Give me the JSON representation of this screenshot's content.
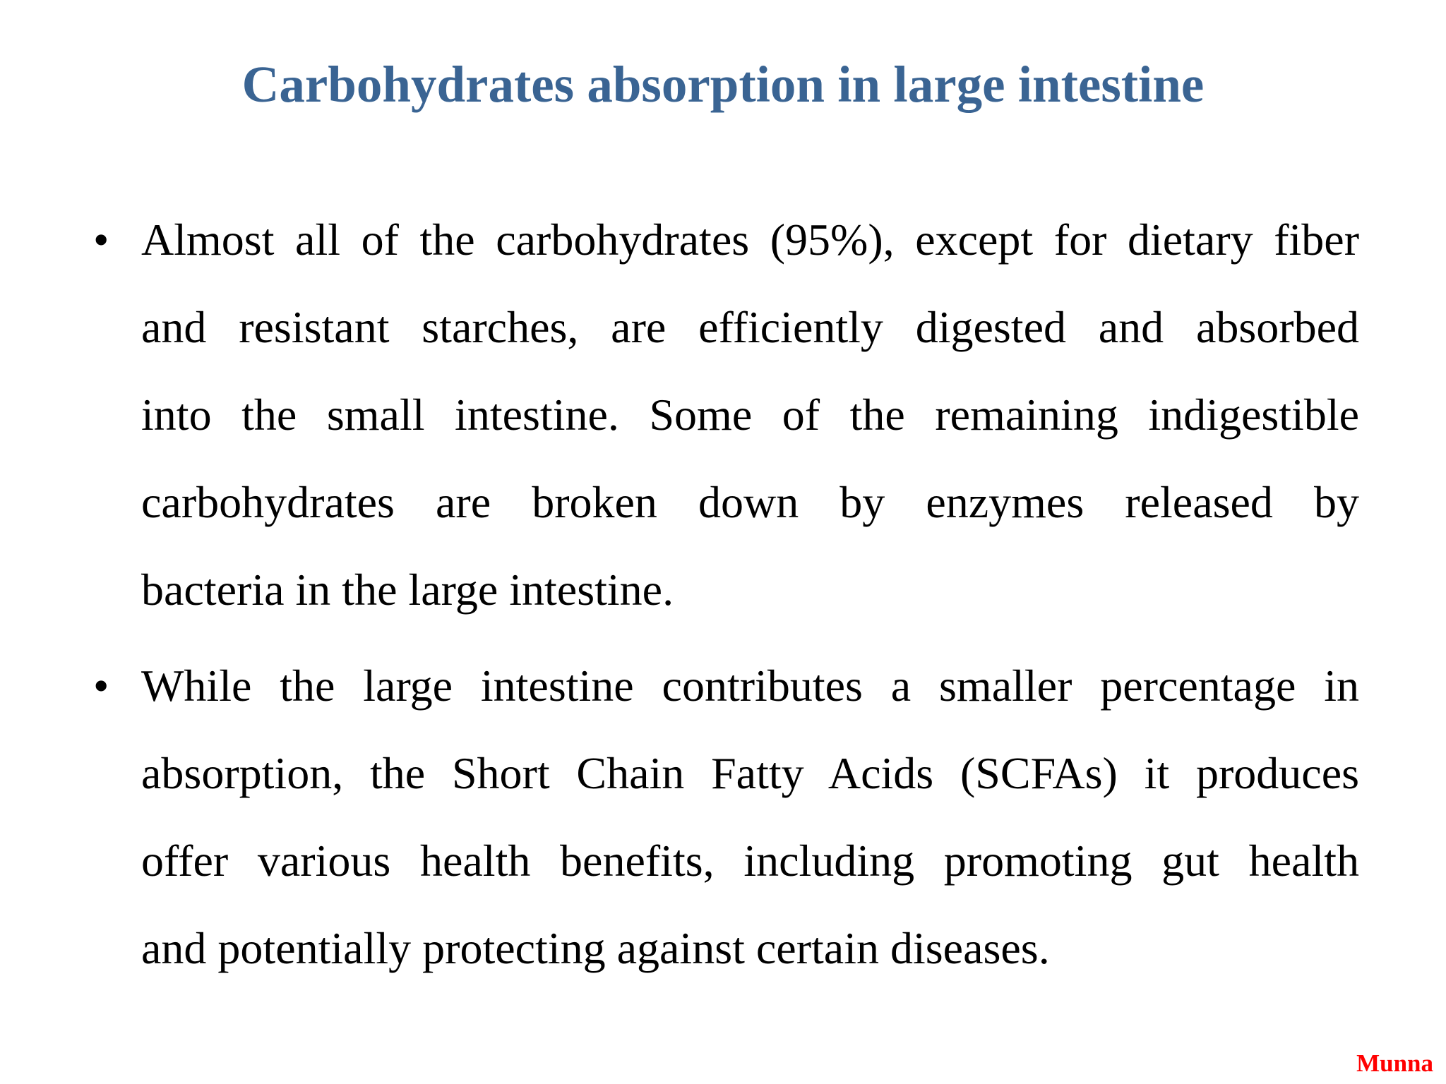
{
  "slide": {
    "title": "Carbohydrates absorption in large intestine",
    "bullets": [
      {
        "marker": "•",
        "lines": [
          "Almost all of the carbohydrates (95%), except for dietary fiber",
          "and resistant starches, are efficiently digested and absorbed",
          "into the small intestine. Some of the remaining indigestible",
          "carbohydrates are broken down by enzymes released by",
          "bacteria in the large intestine."
        ]
      },
      {
        "marker": "•",
        "lines": [
          "While the large intestine contributes a smaller percentage in",
          "absorption, the Short Chain Fatty Acids (SCFAs) it produces",
          "offer various health benefits, including promoting gut health",
          "and potentially protecting against certain diseases."
        ]
      }
    ],
    "footer": {
      "author": "Munna"
    },
    "colors": {
      "background": "#FFFFFF",
      "title": "#3A6493",
      "body_text": "#000000",
      "footer_text": "#FF0000"
    }
  }
}
